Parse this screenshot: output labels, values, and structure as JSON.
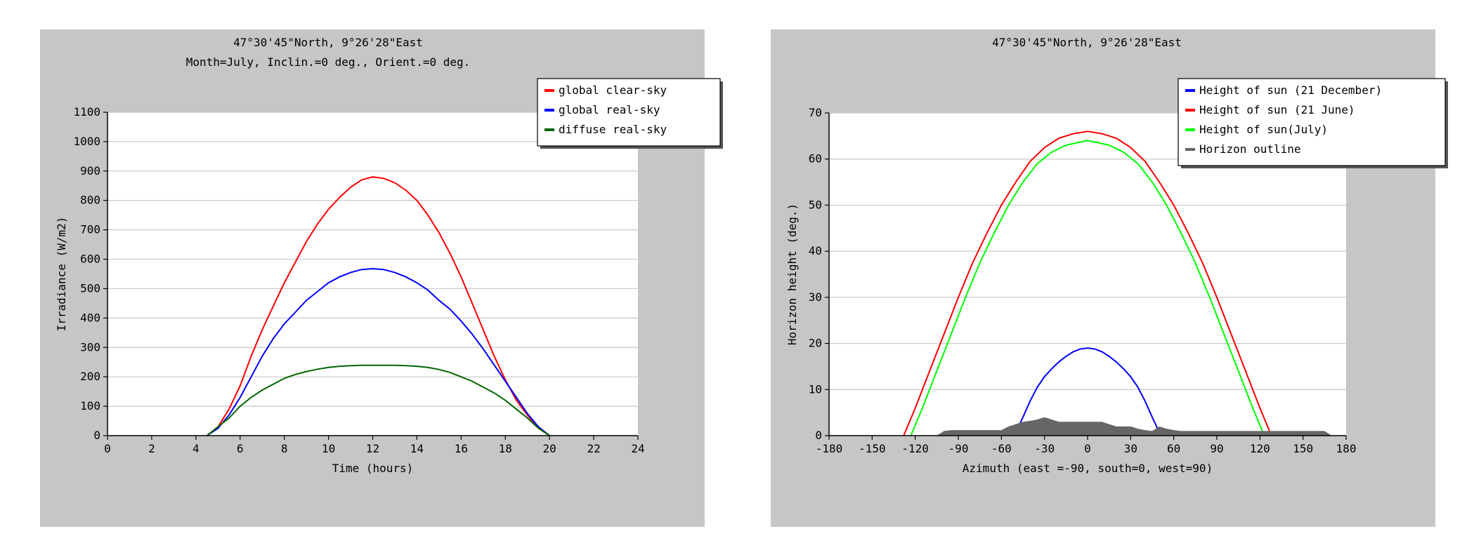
{
  "chart_data": [
    {
      "type": "line",
      "title": "47°30'45\"North, 9°26'28\"East",
      "subtitle": "Month=July, Inclin.=0 deg., Orient.=0 deg.",
      "xlabel": "Time (hours)",
      "ylabel": "Irradiance (W/m2)",
      "xlim": [
        0,
        24
      ],
      "ylim": [
        0,
        1100
      ],
      "xticks": [
        0,
        2,
        4,
        6,
        8,
        10,
        12,
        14,
        16,
        18,
        20,
        22,
        24
      ],
      "yticks": [
        0,
        100,
        200,
        300,
        400,
        500,
        600,
        700,
        800,
        900,
        1000,
        1100
      ],
      "grid": "horizontal",
      "legend_position": "top-right",
      "series": [
        {
          "name": "global clear-sky",
          "color": "#ff0000",
          "x": [
            4.5,
            5,
            5.5,
            6,
            6.5,
            7,
            7.5,
            8,
            8.5,
            9,
            9.5,
            10,
            10.5,
            11,
            11.5,
            12,
            12.5,
            13,
            13.5,
            14,
            14.5,
            15,
            15.5,
            16,
            16.5,
            17,
            17.5,
            18,
            18.5,
            19,
            19.5,
            20
          ],
          "y": [
            0,
            30,
            90,
            170,
            270,
            360,
            440,
            520,
            590,
            660,
            720,
            770,
            810,
            845,
            870,
            880,
            875,
            860,
            835,
            800,
            750,
            690,
            620,
            540,
            450,
            360,
            270,
            190,
            120,
            70,
            25,
            0
          ]
        },
        {
          "name": "global real-sky",
          "color": "#0000ff",
          "x": [
            4.5,
            5,
            5.5,
            6,
            6.5,
            7,
            7.5,
            8,
            8.5,
            9,
            9.5,
            10,
            10.5,
            11,
            11.5,
            12,
            12.5,
            13,
            13.5,
            14,
            14.5,
            15,
            15.5,
            16,
            16.5,
            17,
            17.5,
            18,
            18.5,
            19,
            19.5,
            20
          ],
          "y": [
            0,
            25,
            70,
            130,
            200,
            270,
            330,
            380,
            420,
            460,
            490,
            520,
            540,
            555,
            565,
            568,
            565,
            555,
            540,
            520,
            495,
            460,
            430,
            390,
            345,
            295,
            240,
            185,
            130,
            75,
            30,
            0
          ]
        },
        {
          "name": "diffuse real-sky",
          "color": "#006600",
          "x": [
            4.5,
            5,
            5.5,
            6,
            6.5,
            7,
            7.5,
            8,
            8.5,
            9,
            9.5,
            10,
            10.5,
            11,
            11.5,
            12,
            12.5,
            13,
            13.5,
            14,
            14.5,
            15,
            15.5,
            16,
            16.5,
            17,
            17.5,
            18,
            18.5,
            19,
            19.5,
            20
          ],
          "y": [
            0,
            30,
            60,
            100,
            130,
            155,
            175,
            195,
            208,
            218,
            226,
            232,
            236,
            238,
            239,
            239,
            239,
            239,
            238,
            236,
            232,
            225,
            215,
            200,
            185,
            165,
            145,
            120,
            90,
            60,
            25,
            0
          ]
        }
      ]
    },
    {
      "type": "line",
      "title": "47°30'45\"North, 9°26'28\"East",
      "xlabel": "Azimuth (east =-90, south=0, west=90)",
      "ylabel": "Horizon height (deg.)",
      "xlim": [
        -180,
        180
      ],
      "ylim": [
        0,
        70
      ],
      "xticks": [
        -180,
        -150,
        -120,
        -90,
        -60,
        -30,
        0,
        30,
        60,
        90,
        120,
        150,
        180
      ],
      "yticks": [
        0,
        10,
        20,
        30,
        40,
        50,
        60,
        70
      ],
      "grid": "horizontal",
      "legend_position": "top-right",
      "series": [
        {
          "name": "Height of sun (21 December)",
          "color": "#0000ff",
          "x": [
            -51,
            -45,
            -40,
            -35,
            -30,
            -25,
            -20,
            -15,
            -10,
            -5,
            0,
            5,
            10,
            15,
            20,
            25,
            30,
            35,
            40,
            45,
            51
          ],
          "y": [
            0,
            4,
            7.5,
            10.5,
            12.8,
            14.5,
            16,
            17.2,
            18.2,
            18.8,
            19,
            18.8,
            18.2,
            17.2,
            16,
            14.5,
            12.8,
            10.5,
            7.5,
            4,
            0
          ]
        },
        {
          "name": "Height of sun (21 June)",
          "color": "#ff0000",
          "x": [
            -128,
            -120,
            -110,
            -100,
            -90,
            -80,
            -70,
            -60,
            -50,
            -40,
            -30,
            -20,
            -10,
            0,
            10,
            20,
            30,
            40,
            50,
            60,
            70,
            80,
            90,
            100,
            110,
            120,
            128
          ],
          "y": [
            0,
            6,
            14,
            22,
            30,
            37.5,
            44,
            50,
            55,
            59.5,
            62.5,
            64.5,
            65.5,
            66,
            65.5,
            64.5,
            62.5,
            59.5,
            55,
            50,
            44,
            37.5,
            30,
            22,
            14,
            6,
            0
          ]
        },
        {
          "name": "Height of sun(July)",
          "color": "#00ff00",
          "x": [
            -123,
            -115,
            -105,
            -95,
            -85,
            -75,
            -65,
            -55,
            -45,
            -35,
            -25,
            -15,
            -5,
            0,
            5,
            15,
            25,
            35,
            45,
            55,
            65,
            75,
            85,
            95,
            105,
            115,
            123
          ],
          "y": [
            0,
            6,
            14,
            22,
            30,
            37.5,
            44,
            50,
            55,
            59,
            61.5,
            63,
            63.7,
            64,
            63.7,
            63,
            61.5,
            59,
            55,
            50,
            44,
            37.5,
            30,
            22,
            14,
            6,
            0
          ]
        },
        {
          "name": "Horizon outline",
          "color": "#666666",
          "x": [
            -105,
            -100,
            -95,
            -60,
            -55,
            -50,
            -45,
            -40,
            -35,
            -30,
            -25,
            -20,
            -15,
            -10,
            -5,
            0,
            5,
            10,
            15,
            20,
            25,
            30,
            35,
            40,
            45,
            50,
            55,
            60,
            65,
            100,
            150,
            165,
            170
          ],
          "y": [
            0,
            1,
            1.2,
            1.2,
            2,
            2.5,
            3,
            3.2,
            3.5,
            4,
            3.5,
            3,
            3,
            3,
            3,
            3,
            3,
            3,
            2.5,
            2,
            2,
            2,
            1.5,
            1.2,
            1,
            2,
            1.5,
            1.2,
            1,
            1,
            1,
            1,
            0
          ]
        }
      ]
    }
  ]
}
